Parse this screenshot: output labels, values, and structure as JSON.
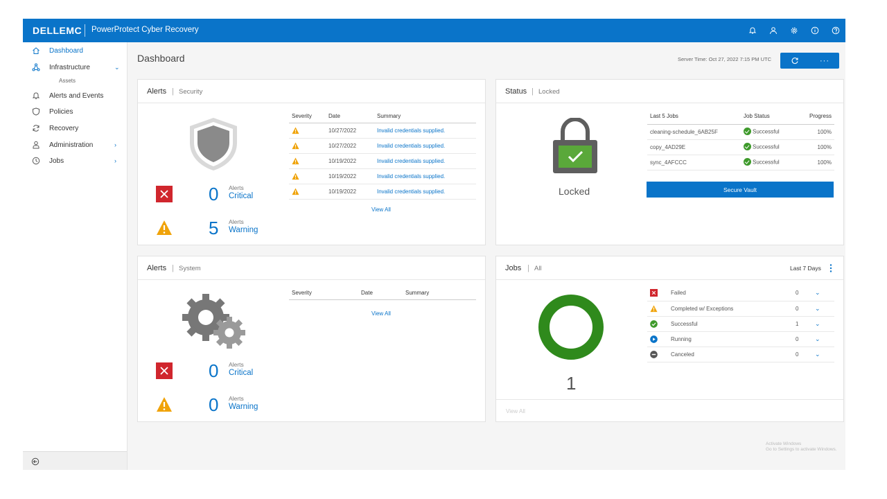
{
  "header": {
    "logo": "DELLEMC",
    "product": "PowerProtect Cyber Recovery",
    "icons": [
      "bell-icon",
      "user-icon",
      "gear-icon",
      "info-icon",
      "help-icon"
    ]
  },
  "sidebar": {
    "items": [
      {
        "label": "Dashboard",
        "icon": "home-icon",
        "active": true
      },
      {
        "label": "Infrastructure",
        "icon": "network-icon",
        "chevron": "down"
      },
      {
        "label": "Alerts and Events",
        "icon": "bell-icon"
      },
      {
        "label": "Policies",
        "icon": "shield-icon"
      },
      {
        "label": "Recovery",
        "icon": "refresh-icon"
      },
      {
        "label": "Administration",
        "icon": "person-icon",
        "chevron": "right"
      },
      {
        "label": "Jobs",
        "icon": "clock-icon",
        "chevron": "right"
      }
    ],
    "subitem": "Assets"
  },
  "page": {
    "title": "Dashboard",
    "server_time": "Server Time: Oct 27, 2022 7:15 PM UTC"
  },
  "security_alerts": {
    "title": "Alerts",
    "subtitle": "Security",
    "critical": {
      "count": "0",
      "label": "Alerts",
      "severity": "Critical"
    },
    "warning": {
      "count": "5",
      "label": "Alerts",
      "severity": "Warning"
    },
    "columns": [
      "Severity",
      "Date",
      "Summary"
    ],
    "rows": [
      {
        "date": "10/27/2022",
        "summary": "Invalid credentials supplied."
      },
      {
        "date": "10/27/2022",
        "summary": "Invalid credentials supplied."
      },
      {
        "date": "10/19/2022",
        "summary": "Invalid credentials supplied."
      },
      {
        "date": "10/19/2022",
        "summary": "Invalid credentials supplied."
      },
      {
        "date": "10/19/2022",
        "summary": "Invalid credentials supplied."
      }
    ],
    "view_all": "View All"
  },
  "status": {
    "title": "Status",
    "subtitle": "Locked",
    "lock_label": "Locked",
    "columns": [
      "Last 5 Jobs",
      "Job Status",
      "Progress"
    ],
    "rows": [
      {
        "job": "cleaning-schedule_6AB25F",
        "status": "Successful",
        "progress": "100%"
      },
      {
        "job": "copy_4AD29E",
        "status": "Successful",
        "progress": "100%"
      },
      {
        "job": "sync_4AFCCC",
        "status": "Successful",
        "progress": "100%"
      }
    ],
    "button": "Secure Vault"
  },
  "system_alerts": {
    "title": "Alerts",
    "subtitle": "System",
    "critical": {
      "count": "0",
      "label": "Alerts",
      "severity": "Critical"
    },
    "warning": {
      "count": "0",
      "label": "Alerts",
      "severity": "Warning"
    },
    "columns": [
      "Severity",
      "Date",
      "Summary"
    ],
    "view_all": "View All"
  },
  "jobs": {
    "title": "Jobs",
    "subtitle": "All",
    "range": "Last 7 Days",
    "total": "1",
    "donut_color": "#2f8a1c",
    "rows": [
      {
        "label": "Failed",
        "count": "0",
        "icon": "failed-icon"
      },
      {
        "label": "Completed w/ Exceptions",
        "count": "0",
        "icon": "warning-icon"
      },
      {
        "label": "Successful",
        "count": "1",
        "icon": "success-icon"
      },
      {
        "label": "Running",
        "count": "0",
        "icon": "running-icon"
      },
      {
        "label": "Canceled",
        "count": "0",
        "icon": "canceled-icon"
      }
    ],
    "view_all": "View All"
  },
  "watermark": {
    "line1": "Activate Windows",
    "line2": "Go to Settings to activate Windows."
  },
  "colors": {
    "brand": "#0a74c9",
    "critical": "#d0262d",
    "warning": "#f0a30a",
    "success": "#3e9a2b"
  }
}
